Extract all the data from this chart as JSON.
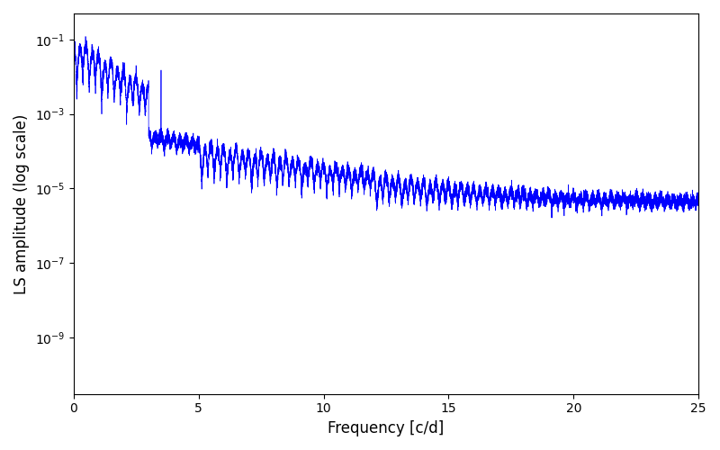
{
  "title": "",
  "xlabel": "Frequency [c/d]",
  "ylabel": "LS amplitude (log scale)",
  "xmin": 0,
  "xmax": 25,
  "ymin": 3e-11,
  "ymax": 0.5,
  "line_color": "#0000ff",
  "line_width": 0.5,
  "figsize": [
    8.0,
    5.0
  ],
  "dpi": 100,
  "yscale": "log",
  "num_points": 15000,
  "seed": 17
}
